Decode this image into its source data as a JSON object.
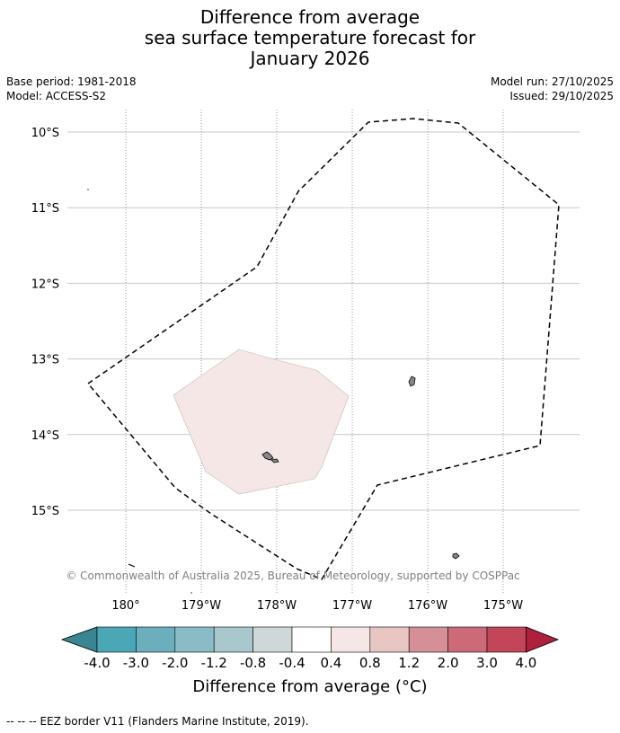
{
  "title": {
    "line1": "Difference from average",
    "line2": "sea surface temperature forecast for",
    "line3": "January 2026"
  },
  "meta": {
    "base_period": "Base period: 1981-2018",
    "model": "Model: ACCESS-S2",
    "model_run": "Model run: 27/10/2025",
    "issued": "Issued: 29/10/2025"
  },
  "map": {
    "lat_labels": [
      "10°S",
      "11°S",
      "12°S",
      "13°S",
      "14°S",
      "15°S"
    ],
    "lat_values": [
      -10,
      -11,
      -12,
      -13,
      -14,
      -15
    ],
    "lon_labels": [
      "180°",
      "179°W",
      "178°W",
      "177°W",
      "176°W",
      "175°W"
    ],
    "lon_values": [
      180,
      -179,
      -178,
      -177,
      -176,
      -175
    ],
    "lat_range": [
      -15.9,
      -9.7
    ],
    "lon_range": [
      179.0,
      -174.0
    ],
    "copyright": "© Commonwealth of Australia 2025, Bureau of Meteorology, supported by COSPPac",
    "anomaly_region_category": "0.4 to 0.8",
    "anomaly_color": "#f4e7e6",
    "eez_color": "#000000",
    "land_color": "#888888"
  },
  "colorbar": {
    "ticks": [
      "-4.0",
      "-3.0",
      "-2.0",
      "-1.2",
      "-0.8",
      "-0.4",
      "0.4",
      "0.8",
      "1.2",
      "2.0",
      "3.0",
      "4.0"
    ],
    "colors": [
      "#4aa7b6",
      "#6aafbb",
      "#89bcc6",
      "#a9c8cd",
      "#cfd8d9",
      "#ffffff",
      "#f4e7e6",
      "#e8c6c3",
      "#d58f96",
      "#cc6b77",
      "#c24558"
    ],
    "under_color": "#3a8592",
    "over_color": "#b0203c",
    "label": "Difference from average (°C)"
  },
  "footer": {
    "legend_symbol": "-- -- --",
    "text": "EEZ border V11 (Flanders Marine Institute, 2019)."
  }
}
